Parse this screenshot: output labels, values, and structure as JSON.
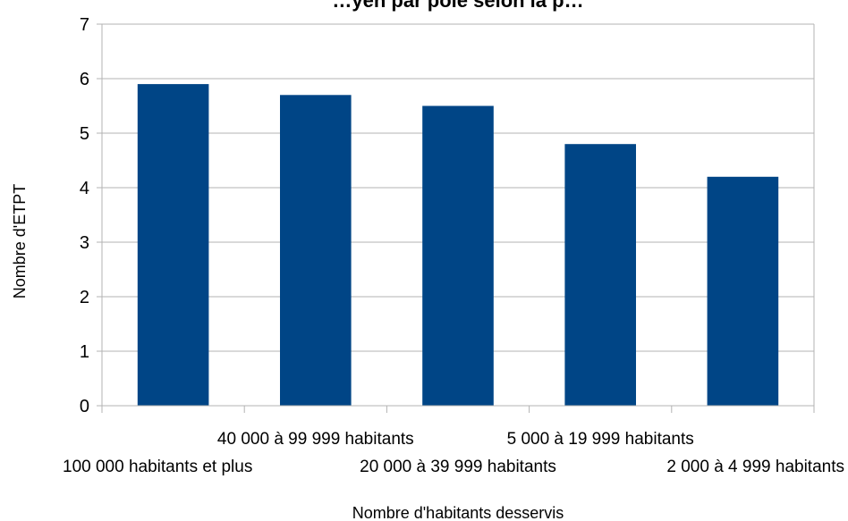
{
  "colors": {
    "bar": "#004586",
    "grid": "#b3b3b3",
    "axis": "#b3b3b3",
    "text": "#000000"
  },
  "chart_data": {
    "type": "bar",
    "title": "…yen par pôle selon la p…",
    "xlabel": "Nombre d'habitants desservis",
    "ylabel": "Nombre d'ETPT",
    "categories": [
      "100 000 habitants et plus",
      "40 000 à 99 999 habitants",
      "20 000 à 39 999 habitants",
      "5 000 à 19 999 habitants",
      "2 000 à 4 999 habitants"
    ],
    "series": [
      {
        "values": [
          5.9,
          5.7,
          5.5,
          4.8,
          4.2
        ]
      }
    ],
    "ylim": [
      0,
      7
    ],
    "yticks": [
      "0",
      "1",
      "2",
      "3",
      "4",
      "5",
      "6",
      "7"
    ],
    "grid": true,
    "legend": "none"
  }
}
